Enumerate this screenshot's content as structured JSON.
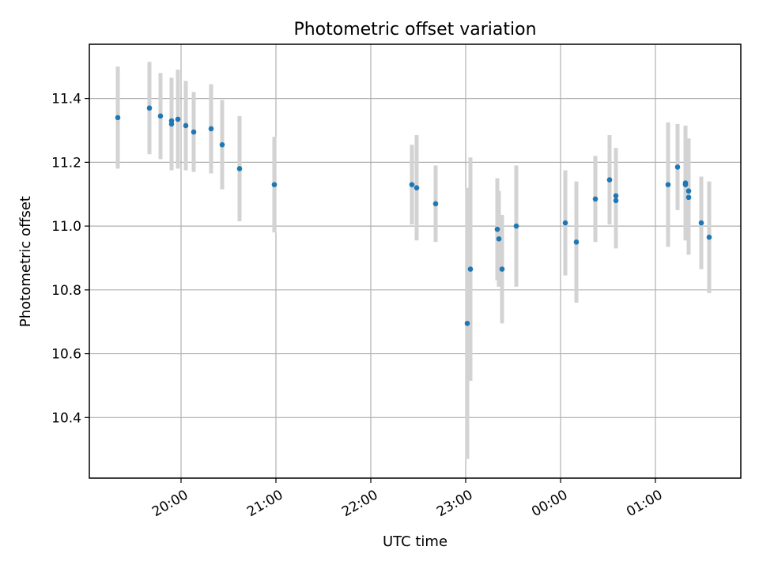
{
  "chart_data": {
    "type": "scatter",
    "title": "Photometric offset variation",
    "xlabel": "UTC time",
    "ylabel": "Photometric offset",
    "x_unit": "UTC time (hours after 19:00 on the first night; values >= 24 fall after midnight)",
    "xlim": [
      "19:02",
      "01:54"
    ],
    "ylim": [
      10.21,
      11.57
    ],
    "x_ticks": [
      {
        "label": "20:00",
        "value": "20:00"
      },
      {
        "label": "21:00",
        "value": "21:00"
      },
      {
        "label": "22:00",
        "value": "22:00"
      },
      {
        "label": "23:00",
        "value": "23:00"
      },
      {
        "label": "00:00",
        "value": "00:00"
      },
      {
        "label": "01:00",
        "value": "01:00"
      }
    ],
    "y_ticks": [
      "10.4",
      "10.6",
      "10.8",
      "11.0",
      "11.2",
      "11.4"
    ],
    "grid": true,
    "marker_color": "#1f77b4",
    "errorbar_color": "#d3d3d3",
    "points": [
      {
        "time": "19:20",
        "y": 11.34,
        "err": 0.16
      },
      {
        "time": "19:40",
        "y": 11.37,
        "err": 0.145
      },
      {
        "time": "19:47",
        "y": 11.345,
        "err": 0.135
      },
      {
        "time": "19:54",
        "y": 11.32,
        "err": 0.145
      },
      {
        "time": "19:54",
        "y": 11.33,
        "err": 0.135
      },
      {
        "time": "19:58",
        "y": 11.335,
        "err": 0.155
      },
      {
        "time": "20:03",
        "y": 11.315,
        "err": 0.14
      },
      {
        "time": "20:08",
        "y": 11.295,
        "err": 0.125
      },
      {
        "time": "20:19",
        "y": 11.305,
        "err": 0.14
      },
      {
        "time": "20:26",
        "y": 11.255,
        "err": 0.14
      },
      {
        "time": "20:37",
        "y": 11.18,
        "err": 0.165
      },
      {
        "time": "20:59",
        "y": 11.13,
        "err": 0.15
      },
      {
        "time": "22:26",
        "y": 11.13,
        "err": 0.125
      },
      {
        "time": "22:29",
        "y": 11.12,
        "err": 0.165
      },
      {
        "time": "22:41",
        "y": 11.07,
        "err": 0.12
      },
      {
        "time": "23:01",
        "y": 10.695,
        "err": 0.425
      },
      {
        "time": "23:03",
        "y": 10.865,
        "err": 0.35
      },
      {
        "time": "23:20",
        "y": 10.99,
        "err": 0.16
      },
      {
        "time": "23:21",
        "y": 10.96,
        "err": 0.15
      },
      {
        "time": "23:23",
        "y": 10.865,
        "err": 0.17
      },
      {
        "time": "23:32",
        "y": 11.0,
        "err": 0.19
      },
      {
        "time": "00:03",
        "y": 11.01,
        "err": 0.165
      },
      {
        "time": "00:10",
        "y": 10.95,
        "err": 0.19
      },
      {
        "time": "00:22",
        "y": 11.085,
        "err": 0.135
      },
      {
        "time": "00:31",
        "y": 11.145,
        "err": 0.14
      },
      {
        "time": "00:35",
        "y": 11.08,
        "err": 0.15
      },
      {
        "time": "00:35",
        "y": 11.095,
        "err": 0.15
      },
      {
        "time": "01:08",
        "y": 11.13,
        "err": 0.195
      },
      {
        "time": "01:14",
        "y": 11.185,
        "err": 0.135
      },
      {
        "time": "01:19",
        "y": 11.135,
        "err": 0.18
      },
      {
        "time": "01:19",
        "y": 11.13,
        "err": 0.165
      },
      {
        "time": "01:21",
        "y": 11.11,
        "err": 0.165
      },
      {
        "time": "01:21",
        "y": 11.09,
        "err": 0.18
      },
      {
        "time": "01:29",
        "y": 11.01,
        "err": 0.145
      },
      {
        "time": "01:34",
        "y": 10.965,
        "err": 0.175
      }
    ]
  }
}
